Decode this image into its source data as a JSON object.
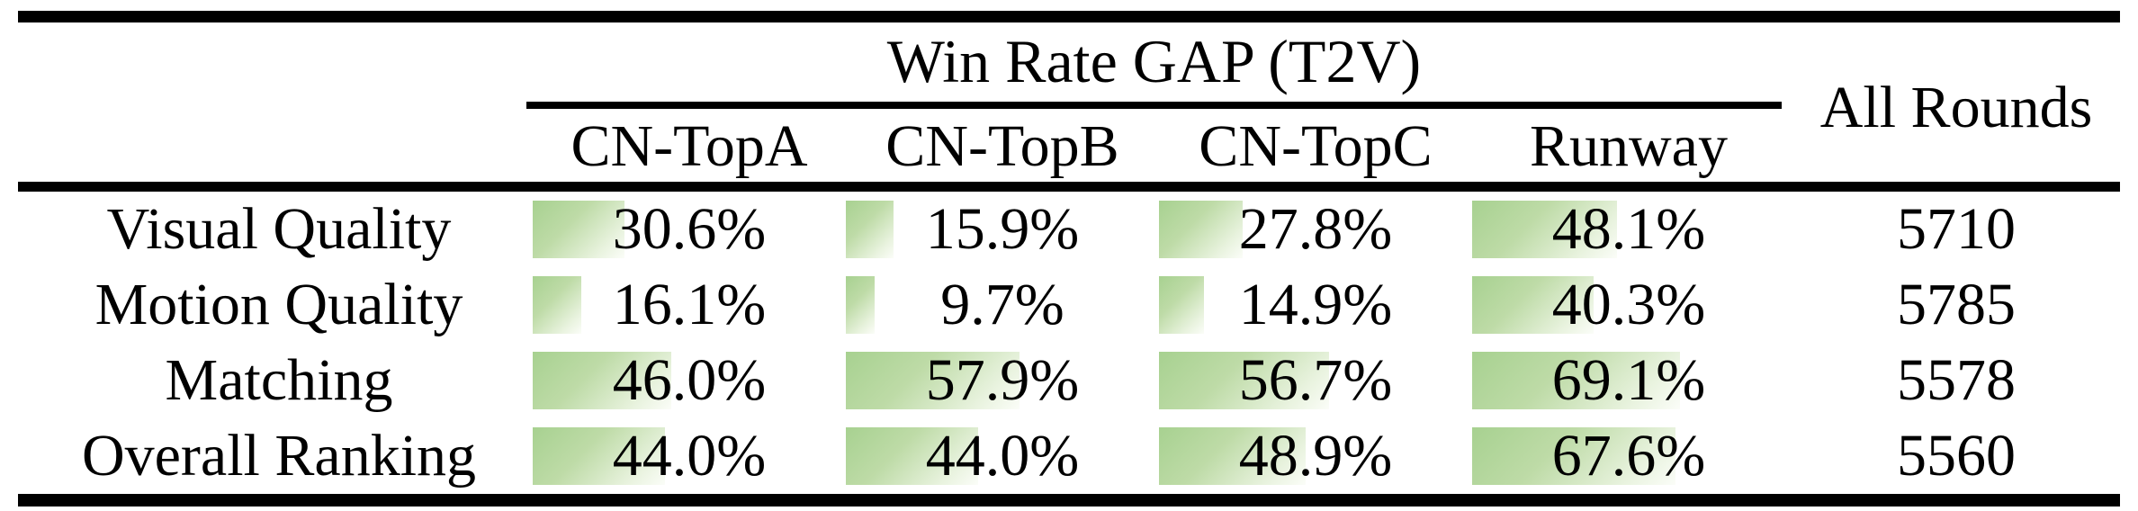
{
  "table": {
    "group_header": "Win Rate GAP (T2V)",
    "all_rounds_header": "All Rounds",
    "columns": [
      "CN-TopA",
      "CN-TopB",
      "CN-TopC",
      "Runway"
    ],
    "rows": [
      {
        "label": "Visual Quality",
        "values": [
          "30.6%",
          "15.9%",
          "27.8%",
          "48.1%"
        ],
        "bars": [
          30.6,
          15.9,
          27.8,
          48.1
        ],
        "all_rounds": "5710"
      },
      {
        "label": "Motion Quality",
        "values": [
          "16.1%",
          "9.7%",
          "14.9%",
          "40.3%"
        ],
        "bars": [
          16.1,
          9.7,
          14.9,
          40.3
        ],
        "all_rounds": "5785"
      },
      {
        "label": "Matching",
        "values": [
          "46.0%",
          "57.9%",
          "56.7%",
          "69.1%"
        ],
        "bars": [
          46.0,
          57.9,
          56.7,
          69.1
        ],
        "all_rounds": "5578"
      },
      {
        "label": "Overall Ranking",
        "values": [
          "44.0%",
          "44.0%",
          "48.9%",
          "67.6%"
        ],
        "bars": [
          44.0,
          44.0,
          48.9,
          67.6
        ],
        "all_rounds": "5560"
      }
    ],
    "colors": {
      "bar_green": "#a7d190",
      "bar_fade": "#fbfdf8",
      "rule": "#000000",
      "text": "#000000"
    }
  },
  "chart_data": {
    "type": "table",
    "title": "Win Rate GAP (T2V)",
    "categories": [
      "Visual Quality",
      "Motion Quality",
      "Matching",
      "Overall Ranking"
    ],
    "series": [
      {
        "name": "CN-TopA",
        "values": [
          30.6,
          16.1,
          46.0,
          44.0
        ]
      },
      {
        "name": "CN-TopB",
        "values": [
          15.9,
          9.7,
          57.9,
          44.0
        ]
      },
      {
        "name": "CN-TopC",
        "values": [
          27.8,
          14.9,
          56.7,
          48.9
        ]
      },
      {
        "name": "Runway",
        "values": [
          48.1,
          40.3,
          69.1,
          67.6
        ]
      },
      {
        "name": "All Rounds",
        "values": [
          5710,
          5785,
          5578,
          5560
        ]
      }
    ],
    "value_unit": "percent (win rate gap), All Rounds in counts",
    "layout": "in-cell data bars, bar length = percentage of cell width, green gradient fill"
  }
}
